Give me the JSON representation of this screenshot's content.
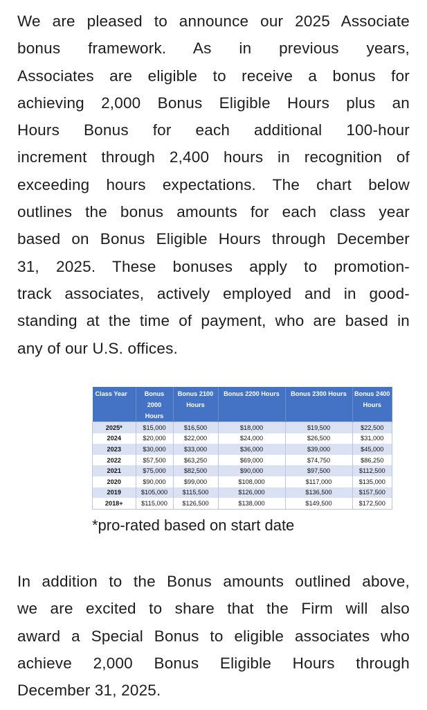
{
  "intro_lines": [
    "We are pleased to announce our 2025 Associate",
    "bonus framework. As in previous years,",
    "Associates are eligible to receive a bonus for",
    "achieving 2,000 Bonus Eligible Hours plus an",
    "Hours Bonus for each additional 100-hour",
    "increment through 2,400 hours in recognition of",
    "exceeding hours expectations. The chart below",
    "outlines the bonus amounts for each class year",
    "based on Bonus Eligible Hours through December",
    "31, 2025. These bonuses apply to promotion-",
    "track associates, actively employed and in good-",
    "standing at the time of payment, who are based in",
    "any of our U.S. offices."
  ],
  "table": {
    "headers": [
      "Class Year",
      "Bonus 2000 Hours",
      "Bonus 2100 Hours",
      "Bonus 2200 Hours",
      "Bonus 2300 Hours",
      "Bonus 2400 Hours"
    ],
    "rows": [
      [
        "2025*",
        "$15,000",
        "$16,500",
        "$18,000",
        "$19,500",
        "$22,500"
      ],
      [
        "2024",
        "$20,000",
        "$22,000",
        "$24,000",
        "$26,500",
        "$31,000"
      ],
      [
        "2023",
        "$30,000",
        "$33,000",
        "$36,000",
        "$39,000",
        "$45,000"
      ],
      [
        "2022",
        "$57,500",
        "$63,250",
        "$69,000",
        "$74,750",
        "$86,250"
      ],
      [
        "2021",
        "$75,000",
        "$82,500",
        "$90,000",
        "$97,500",
        "$112,500"
      ],
      [
        "2020",
        "$90,000",
        "$99,000",
        "$108,000",
        "$117,000",
        "$135,000"
      ],
      [
        "2019",
        "$105,000",
        "$115,500",
        "$126,000",
        "$136,500",
        "$157,500"
      ],
      [
        "2018+",
        "$115,000",
        "$126,500",
        "$138,000",
        "$149,500",
        "$172,500"
      ]
    ],
    "header_color": "#4472c4",
    "alt_row_color": "#d9e1f2"
  },
  "footnote": "*pro-rated based on start date",
  "closing_lines": [
    "In addition to the Bonus amounts outlined above,",
    "we are excited to share that the Firm will also",
    "award a Special Bonus to eligible associates who",
    "achieve 2,000 Bonus Eligible Hours through",
    "December 31, 2025."
  ]
}
